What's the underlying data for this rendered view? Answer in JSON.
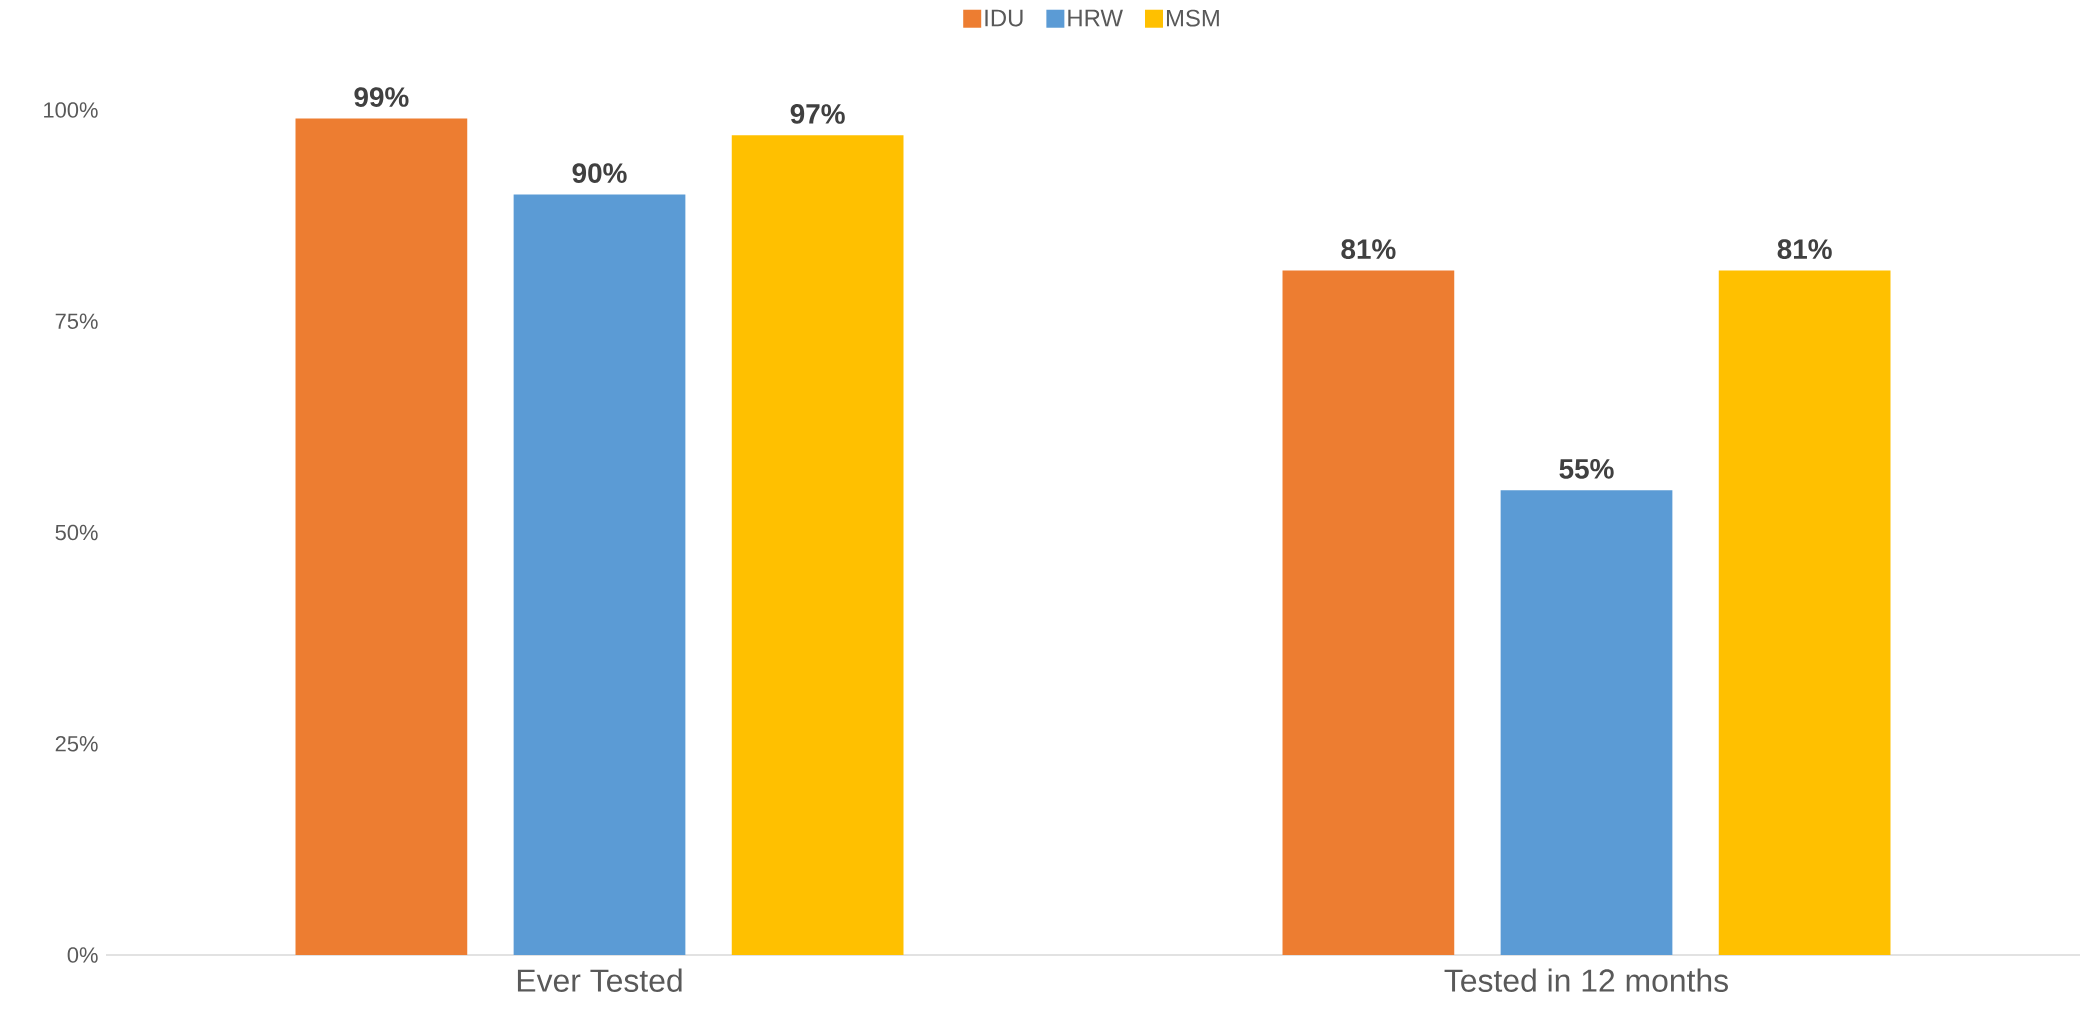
{
  "chart_data": {
    "type": "bar",
    "categories": [
      "Ever Tested",
      "Tested in 12 months"
    ],
    "series": [
      {
        "name": "IDU",
        "color": "#ed7d31",
        "values": [
          99,
          81
        ],
        "value_labels": [
          "99%",
          "81%"
        ]
      },
      {
        "name": "HRW",
        "color": "#5b9bd5",
        "values": [
          90,
          55
        ],
        "value_labels": [
          "90%",
          "55%"
        ]
      },
      {
        "name": "MSM",
        "color": "#ffc000",
        "values": [
          97,
          81
        ],
        "value_labels": [
          "97%",
          "81%"
        ]
      }
    ],
    "ylim": [
      0,
      100
    ],
    "yticks": [
      {
        "value": 0,
        "label": "0%"
      },
      {
        "value": 25,
        "label": "25%"
      },
      {
        "value": 50,
        "label": "50%"
      },
      {
        "value": 75,
        "label": "75%"
      },
      {
        "value": 100,
        "label": "100%"
      }
    ],
    "legend": "top"
  }
}
